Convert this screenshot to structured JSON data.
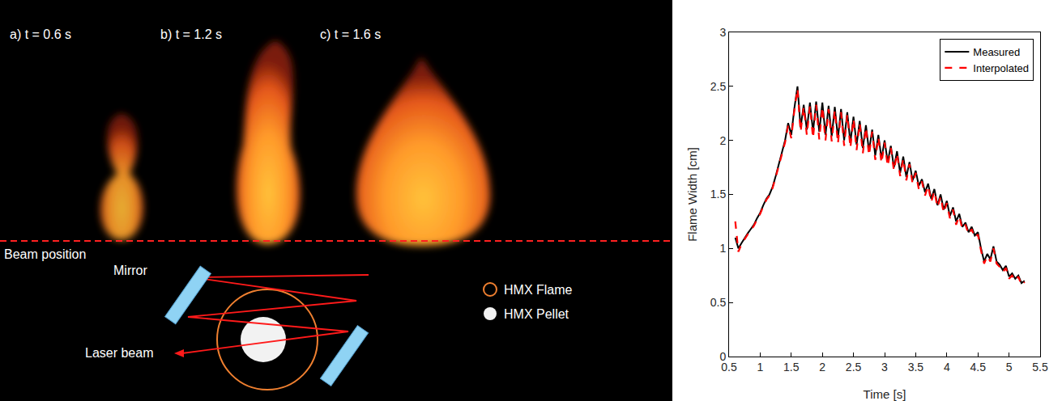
{
  "chart_data": {
    "type": "line",
    "xlabel": "Time [s]",
    "ylabel": "Flame Width [cm]",
    "x": [
      0.6,
      0.65,
      0.7,
      0.75,
      0.8,
      0.85,
      0.9,
      0.95,
      1.0,
      1.05,
      1.1,
      1.15,
      1.2,
      1.25,
      1.3,
      1.35,
      1.4,
      1.45,
      1.5,
      1.55,
      1.6,
      1.65,
      1.7,
      1.75,
      1.8,
      1.85,
      1.9,
      1.95,
      2.0,
      2.05,
      2.1,
      2.15,
      2.2,
      2.25,
      2.3,
      2.35,
      2.4,
      2.45,
      2.5,
      2.55,
      2.6,
      2.65,
      2.7,
      2.75,
      2.8,
      2.85,
      2.9,
      2.95,
      3.0,
      3.05,
      3.1,
      3.15,
      3.2,
      3.25,
      3.3,
      3.35,
      3.4,
      3.45,
      3.5,
      3.55,
      3.6,
      3.65,
      3.7,
      3.75,
      3.8,
      3.85,
      3.9,
      3.95,
      4.0,
      4.05,
      4.1,
      4.15,
      4.2,
      4.25,
      4.3,
      4.35,
      4.4,
      4.45,
      4.5,
      4.55,
      4.6,
      4.65,
      4.7,
      4.75,
      4.8,
      4.85,
      4.9,
      4.95,
      5.0,
      5.05,
      5.1,
      5.15,
      5.2,
      5.25
    ],
    "series": [
      {
        "name": "Measured",
        "color": "#000000",
        "line_style": "solid",
        "values": [
          1.1,
          1.0,
          1.05,
          1.1,
          1.14,
          1.18,
          1.22,
          1.28,
          1.33,
          1.4,
          1.46,
          1.5,
          1.57,
          1.67,
          1.78,
          1.88,
          2.0,
          2.16,
          2.05,
          2.3,
          2.5,
          2.12,
          2.33,
          2.1,
          2.35,
          2.08,
          2.36,
          2.08,
          2.35,
          2.05,
          2.32,
          2.04,
          2.31,
          2.02,
          2.29,
          2.0,
          2.26,
          1.98,
          2.22,
          1.96,
          2.18,
          1.93,
          2.14,
          1.9,
          2.1,
          1.86,
          2.05,
          1.83,
          2.0,
          1.8,
          1.95,
          1.75,
          1.9,
          1.7,
          1.85,
          1.66,
          1.8,
          1.63,
          1.72,
          1.58,
          1.64,
          1.52,
          1.6,
          1.46,
          1.55,
          1.4,
          1.5,
          1.36,
          1.44,
          1.3,
          1.38,
          1.25,
          1.32,
          1.2,
          1.24,
          1.15,
          1.2,
          1.12,
          1.15,
          1.0,
          0.88,
          0.95,
          0.9,
          1.02,
          0.88,
          0.85,
          0.8,
          0.84,
          0.74,
          0.77,
          0.72,
          0.75,
          0.68,
          0.7
        ]
      },
      {
        "name": "Interpolated",
        "color": "#ff0000",
        "line_style": "dash",
        "values": [
          1.25,
          0.97,
          1.04,
          1.09,
          1.13,
          1.17,
          1.21,
          1.27,
          1.32,
          1.39,
          1.45,
          1.49,
          1.56,
          1.66,
          1.77,
          1.86,
          1.98,
          2.14,
          2.02,
          2.28,
          2.48,
          2.08,
          2.31,
          2.05,
          2.32,
          2.02,
          2.33,
          2.01,
          2.31,
          2.0,
          2.29,
          1.99,
          2.28,
          1.97,
          2.26,
          1.95,
          2.24,
          1.93,
          2.2,
          1.91,
          2.16,
          1.88,
          2.12,
          1.86,
          2.08,
          1.82,
          2.03,
          1.79,
          1.98,
          1.76,
          1.93,
          1.72,
          1.88,
          1.67,
          1.83,
          1.63,
          1.78,
          1.6,
          1.7,
          1.55,
          1.62,
          1.49,
          1.58,
          1.43,
          1.53,
          1.38,
          1.48,
          1.33,
          1.42,
          1.28,
          1.36,
          1.22,
          1.3,
          1.18,
          1.22,
          1.13,
          1.18,
          1.1,
          1.13,
          0.98,
          0.86,
          0.93,
          0.88,
          1.0,
          0.86,
          0.83,
          0.78,
          0.82,
          0.72,
          0.75,
          0.7,
          0.74,
          0.66,
          0.69
        ]
      }
    ],
    "xlim": [
      0.5,
      5.5
    ],
    "xticks": [
      0.5,
      1,
      1.5,
      2,
      2.5,
      3,
      3.5,
      4,
      4.5,
      5,
      5.5
    ],
    "ylim": [
      0,
      3
    ],
    "yticks": [
      0,
      0.5,
      1,
      1.5,
      2,
      2.5,
      3
    ],
    "grid": false,
    "legend": "upper right"
  },
  "image_panel": {
    "frames": [
      "a)  t = 0.6 s",
      "b)  t = 1.2 s",
      "c)  t = 1.6 s"
    ],
    "beam_label": "Beam position",
    "mirror_label": "Mirror",
    "laser_label": "Laser beam",
    "key": [
      "HMX Flame",
      "HMX Pellet"
    ]
  }
}
